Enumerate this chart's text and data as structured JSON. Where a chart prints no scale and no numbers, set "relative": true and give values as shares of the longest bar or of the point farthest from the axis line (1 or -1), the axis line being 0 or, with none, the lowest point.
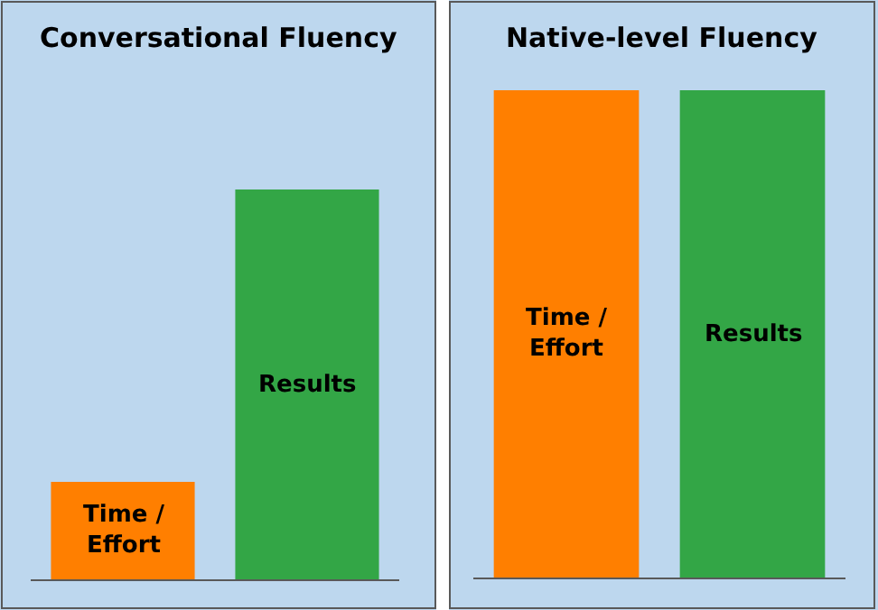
{
  "chart_data": [
    {
      "type": "bar",
      "title": "Conversational Fluency",
      "categories": [
        null,
        null
      ],
      "colors": [
        "#ff7f00",
        "#33a646"
      ],
      "values": [
        0.25,
        1
      ],
      "relative": true,
      "annotations": [
        "Time / Effort",
        "Results"
      ]
    },
    {
      "type": "bar",
      "title": "Native-level Fluency",
      "categories": [
        null,
        null
      ],
      "colors": [
        "#ff7f00",
        "#33a646"
      ],
      "values": [
        1,
        1
      ],
      "relative": true,
      "annotations": [
        "Time / Effort",
        "Results"
      ]
    }
  ]
}
